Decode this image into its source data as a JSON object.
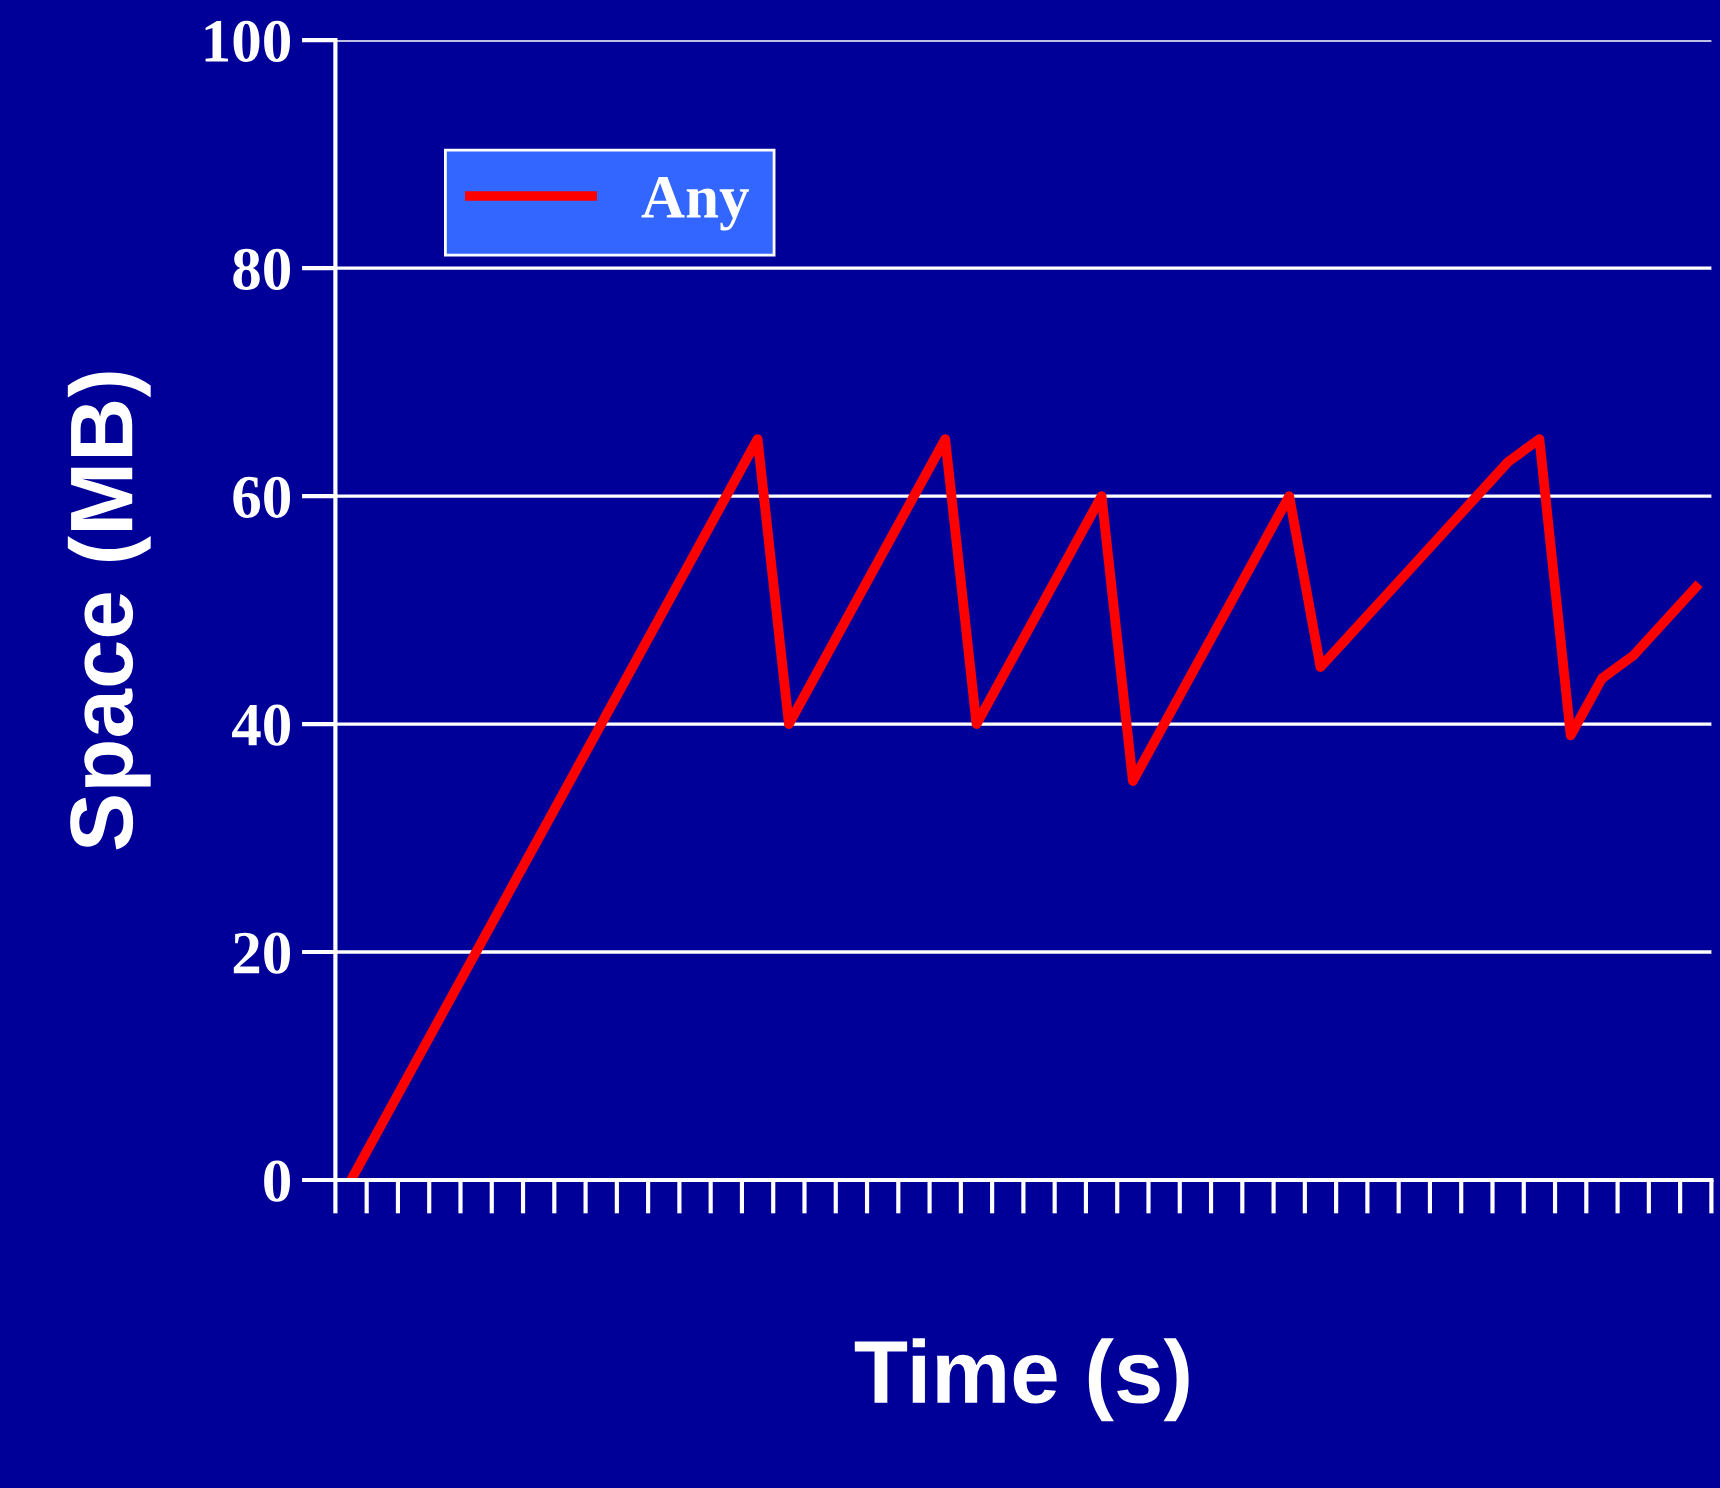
{
  "chart_data": {
    "type": "line",
    "xlabel": "Time (s)",
    "ylabel": "Space (MB)",
    "categories": [
      null,
      null,
      null,
      null,
      null,
      null,
      null,
      null,
      null,
      null,
      null,
      null,
      null,
      null,
      null,
      null,
      null,
      null,
      null,
      null,
      null,
      null,
      null,
      null,
      null,
      null,
      null,
      null,
      null,
      null,
      null,
      null,
      null,
      null,
      null,
      null,
      null,
      null,
      null,
      null,
      null,
      null,
      null,
      null
    ],
    "series": [
      {
        "name": "Any",
        "color": "#ff0000",
        "values": [
          0,
          5,
          10,
          15,
          20,
          25,
          30,
          35,
          40,
          45,
          50,
          55,
          60,
          65,
          40,
          45,
          50,
          55,
          60,
          65,
          40,
          45,
          50,
          55,
          60,
          35,
          40,
          45,
          50,
          55,
          60,
          45,
          48,
          51,
          54,
          57,
          60,
          63,
          65,
          39,
          44,
          46,
          49,
          52
        ]
      }
    ],
    "ylim": [
      0,
      100
    ],
    "yticks": [
      0,
      20,
      40,
      60,
      80,
      100
    ],
    "grid": "y",
    "legend": "top left",
    "tick_labels": "y",
    "marker": "none",
    "line_style": "solid"
  }
}
